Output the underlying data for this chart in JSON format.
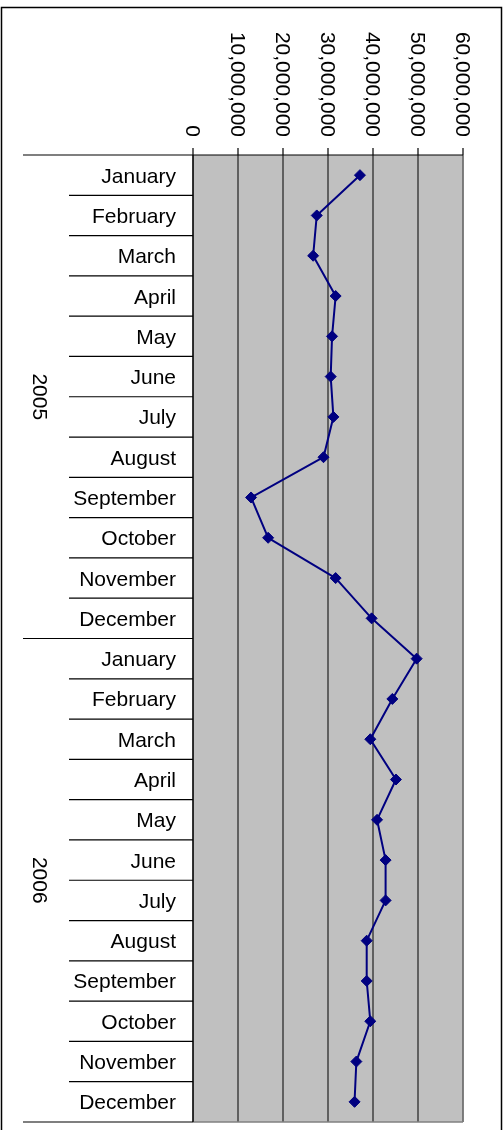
{
  "chart_data": {
    "type": "line",
    "orientation": "horizontal",
    "categories": [
      "January",
      "February",
      "March",
      "April",
      "May",
      "June",
      "July",
      "August",
      "September",
      "October",
      "November",
      "December",
      "January",
      "February",
      "March",
      "April",
      "May",
      "June",
      "July",
      "August",
      "September",
      "October",
      "November",
      "December"
    ],
    "series": [
      {
        "color": "#000080",
        "values": [
          37100000,
          27500000,
          26700000,
          31700000,
          30900000,
          30600000,
          31200000,
          29000000,
          12900000,
          16700000,
          31700000,
          39700000,
          49700000,
          44300000,
          39400000,
          45100000,
          40900000,
          42800000,
          42800000,
          38600000,
          38600000,
          39400000,
          36300000,
          35900000
        ]
      }
    ],
    "xlim": [
      0,
      60000000
    ],
    "xticks": [
      0,
      {
        "value": 10000000,
        "label": "10,000,000"
      },
      {
        "value": 20000000,
        "label": "20,000,000"
      },
      {
        "value": 30000000,
        "label": "30,000,000"
      },
      {
        "value": 40000000,
        "label": "40,000,000"
      },
      {
        "value": 50000000,
        "label": "50,000,000"
      },
      {
        "value": 60000000,
        "label": "60,000,000"
      }
    ],
    "grid": "x",
    "marker": "diamond",
    "line_style": "solid",
    "annotations": [
      "2005",
      "2006"
    ]
  }
}
